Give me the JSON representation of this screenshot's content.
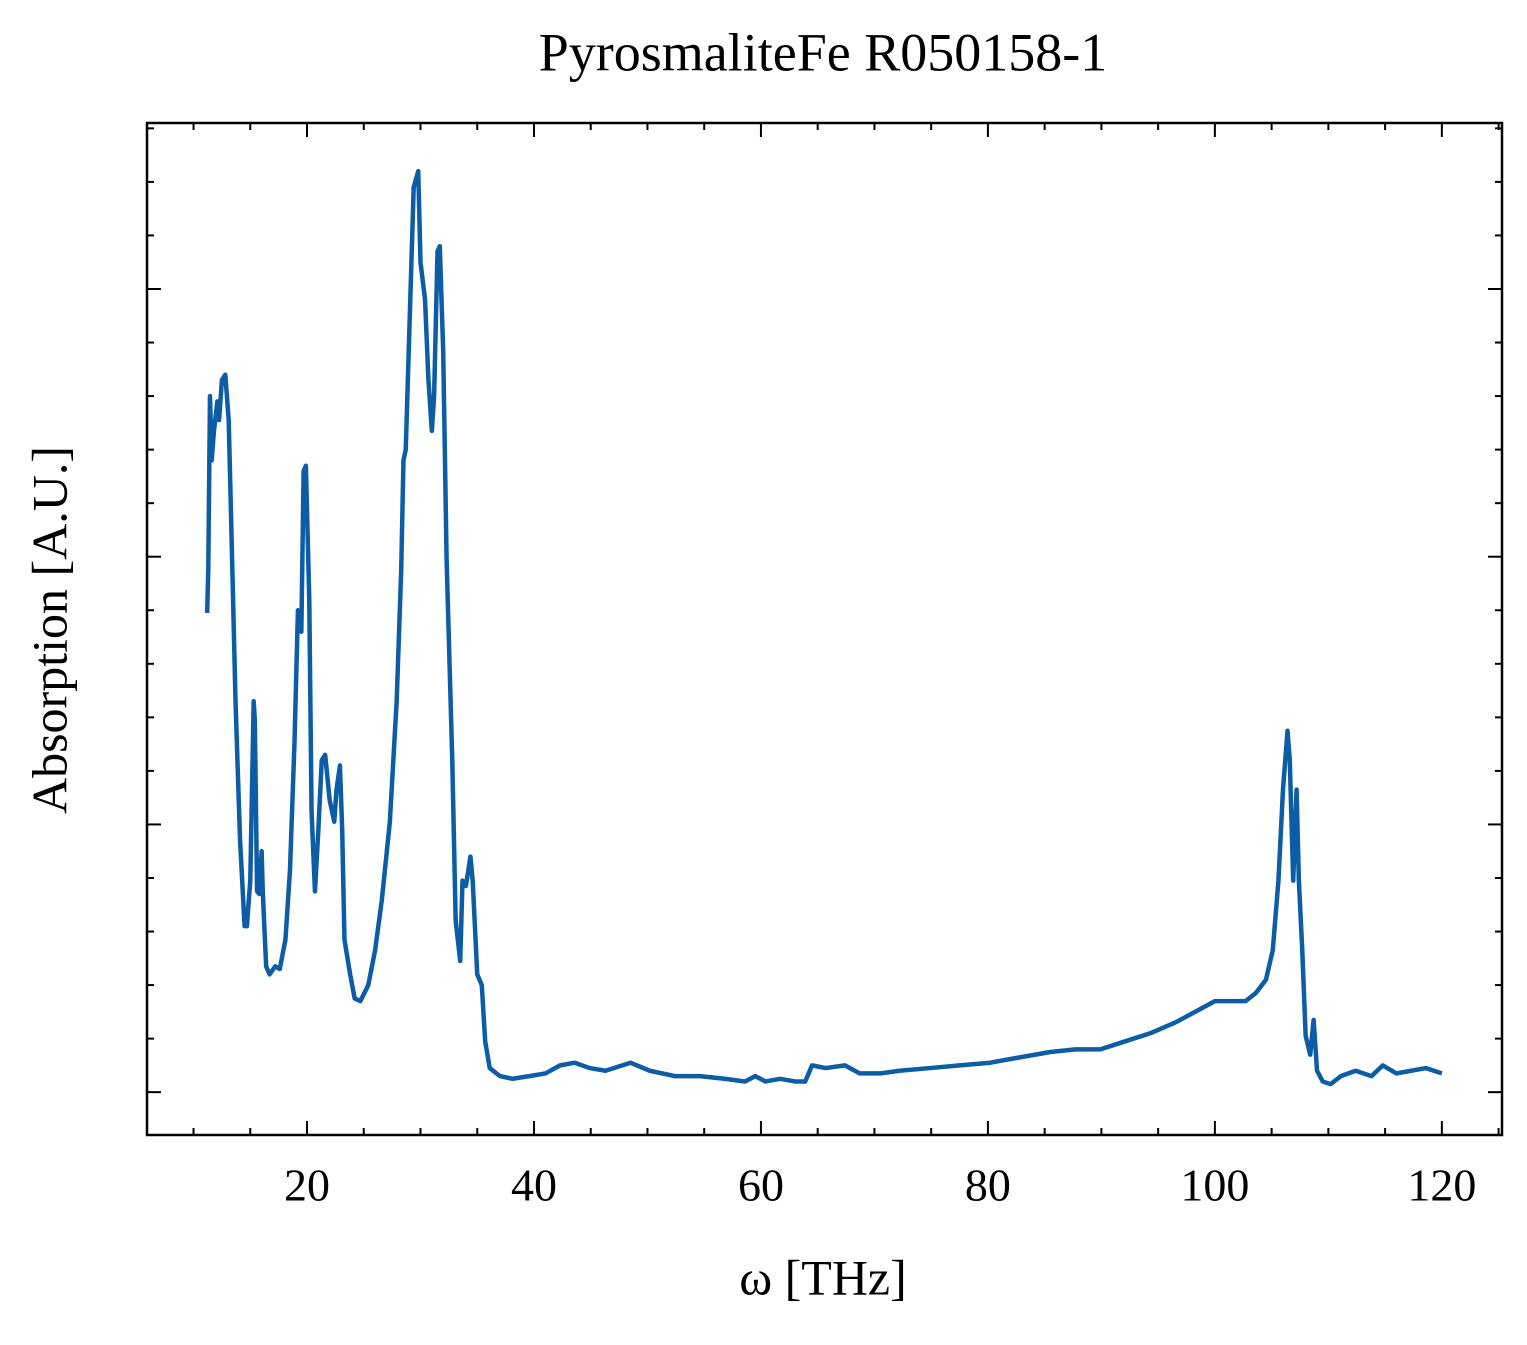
{
  "chart_data": {
    "type": "line",
    "title": "PyrosmaliteFe R050158-1",
    "xlabel": "ω [THz]",
    "ylabel": "Absorption [A.U.]",
    "color": "#0C5DA5",
    "xlim": [
      5.9,
      125.3
    ],
    "xticks": [
      20,
      40,
      60,
      80,
      100,
      120
    ],
    "xminorticks": [
      10,
      15,
      25,
      30,
      35,
      45,
      50,
      55,
      65,
      70,
      75,
      85,
      90,
      95,
      105,
      110,
      115,
      125
    ],
    "ylim": [
      -0.16,
      3.62
    ],
    "yticks": [
      0,
      1,
      2,
      3
    ],
    "yminorticks": [
      0.2,
      0.4,
      0.6,
      0.8,
      1.2,
      1.4,
      1.6,
      1.8,
      2.2,
      2.4,
      2.6,
      2.8,
      3.2,
      3.4,
      3.6
    ],
    "ytick_labels": false,
    "x": [
      11.2,
      11.3,
      11.45,
      11.6,
      11.8,
      12.1,
      12.25,
      12.5,
      12.8,
      13.1,
      13.4,
      13.7,
      14.1,
      14.5,
      14.7,
      15.0,
      15.3,
      15.4,
      15.6,
      15.8,
      16.0,
      16.1,
      16.4,
      16.7,
      17.2,
      17.6,
      18.1,
      18.5,
      18.9,
      19.2,
      19.5,
      19.7,
      19.9,
      20.2,
      20.4,
      20.7,
      21.0,
      21.3,
      21.6,
      22.0,
      22.4,
      22.6,
      22.9,
      23.1,
      23.3,
      23.8,
      24.2,
      24.7,
      25.4,
      26.0,
      26.6,
      27.3,
      27.9,
      28.3,
      28.5,
      28.7,
      29.1,
      29.4,
      29.8,
      30.0,
      30.4,
      30.7,
      31.0,
      31.2,
      31.5,
      31.7,
      32.0,
      32.3,
      32.8,
      33.1,
      33.5,
      33.7,
      34.0,
      34.4,
      34.6,
      35.0,
      35.4,
      35.7,
      36.1,
      37.0,
      38.1,
      39.6,
      41.0,
      42.3,
      43.6,
      44.9,
      46.3,
      48.5,
      50.2,
      52.4,
      54.6,
      56.8,
      58.6,
      59.5,
      60.4,
      61.7,
      63.0,
      63.9,
      64.5,
      65.7,
      67.4,
      68.7,
      70.5,
      72.2,
      74.9,
      77.5,
      80.2,
      82.8,
      85.5,
      87.7,
      89.9,
      92.1,
      94.3,
      96.5,
      98.7,
      100.0,
      101.4,
      102.7,
      103.6,
      104.5,
      105.1,
      105.6,
      106.0,
      106.4,
      106.6,
      106.9,
      107.2,
      107.4,
      107.7,
      108.0,
      108.4,
      108.7,
      109.0,
      109.5,
      110.2,
      111.1,
      112.4,
      113.8,
      114.8,
      116.0,
      117.3,
      118.6,
      120.0
    ],
    "values": [
      1.79,
      1.95,
      2.6,
      2.36,
      2.47,
      2.58,
      2.51,
      2.66,
      2.68,
      2.51,
      1.99,
      1.46,
      0.94,
      0.62,
      0.62,
      0.79,
      1.46,
      1.39,
      0.75,
      0.74,
      0.9,
      0.75,
      0.47,
      0.44,
      0.47,
      0.46,
      0.57,
      0.83,
      1.31,
      1.8,
      1.72,
      2.32,
      2.34,
      1.84,
      1.05,
      0.75,
      0.98,
      1.24,
      1.26,
      1.09,
      1.01,
      1.13,
      1.22,
      0.98,
      0.57,
      0.44,
      0.35,
      0.34,
      0.4,
      0.53,
      0.72,
      1.01,
      1.46,
      1.95,
      2.36,
      2.4,
      2.96,
      3.38,
      3.44,
      3.1,
      2.96,
      2.66,
      2.47,
      2.6,
      3.14,
      3.16,
      2.77,
      1.99,
      1.24,
      0.64,
      0.49,
      0.79,
      0.77,
      0.88,
      0.79,
      0.44,
      0.4,
      0.19,
      0.09,
      0.06,
      0.05,
      0.06,
      0.07,
      0.1,
      0.11,
      0.09,
      0.08,
      0.11,
      0.08,
      0.06,
      0.06,
      0.05,
      0.04,
      0.06,
      0.04,
      0.05,
      0.04,
      0.04,
      0.1,
      0.09,
      0.1,
      0.07,
      0.07,
      0.08,
      0.09,
      0.1,
      0.11,
      0.13,
      0.15,
      0.16,
      0.16,
      0.19,
      0.22,
      0.26,
      0.31,
      0.34,
      0.34,
      0.34,
      0.37,
      0.42,
      0.53,
      0.79,
      1.13,
      1.35,
      1.24,
      0.79,
      1.13,
      0.79,
      0.53,
      0.21,
      0.14,
      0.27,
      0.08,
      0.04,
      0.03,
      0.06,
      0.08,
      0.06,
      0.1,
      0.07,
      0.08,
      0.09,
      0.07
    ]
  }
}
